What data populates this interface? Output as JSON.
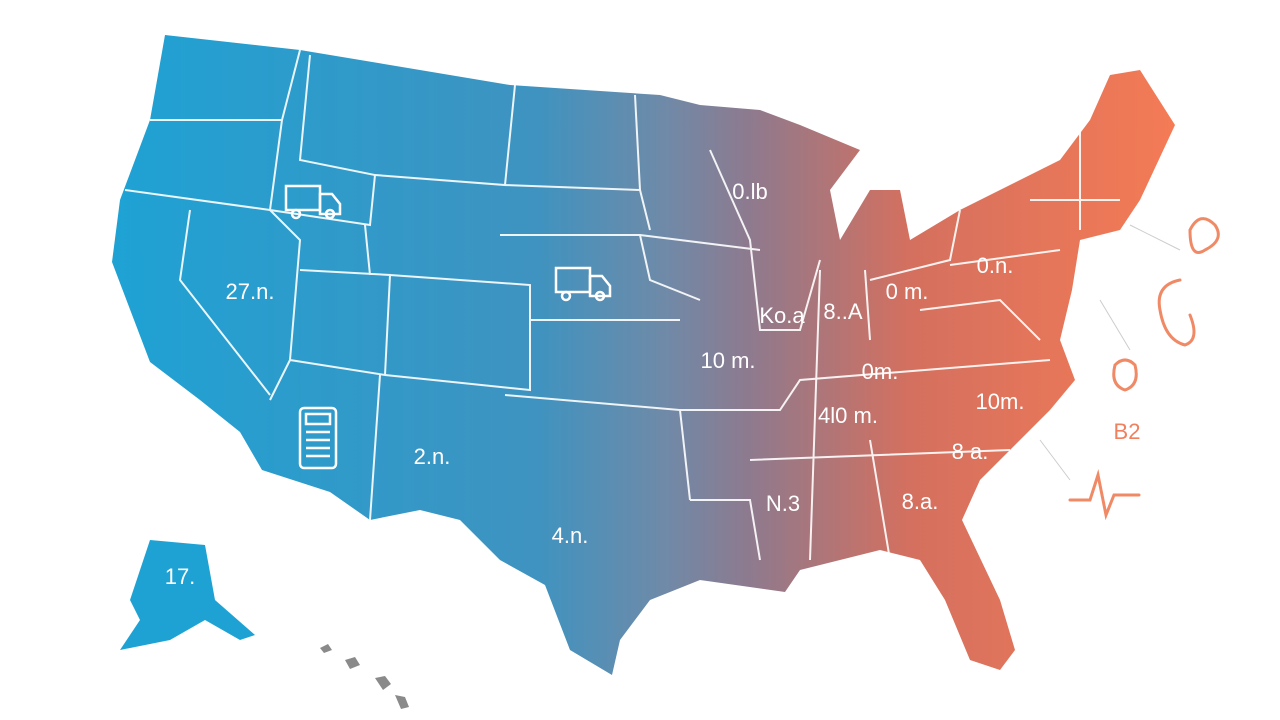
{
  "map": {
    "labels": [
      "0.lb",
      "27.n.",
      "2.n.",
      "4.n.",
      "17.",
      "Ko.a",
      "8..A",
      "0 m.",
      "0.n.",
      "10 m.",
      "0m.",
      "4l0 m.",
      "10m.",
      "8 a.",
      "8.a.",
      "N.3",
      "B2"
    ]
  }
}
